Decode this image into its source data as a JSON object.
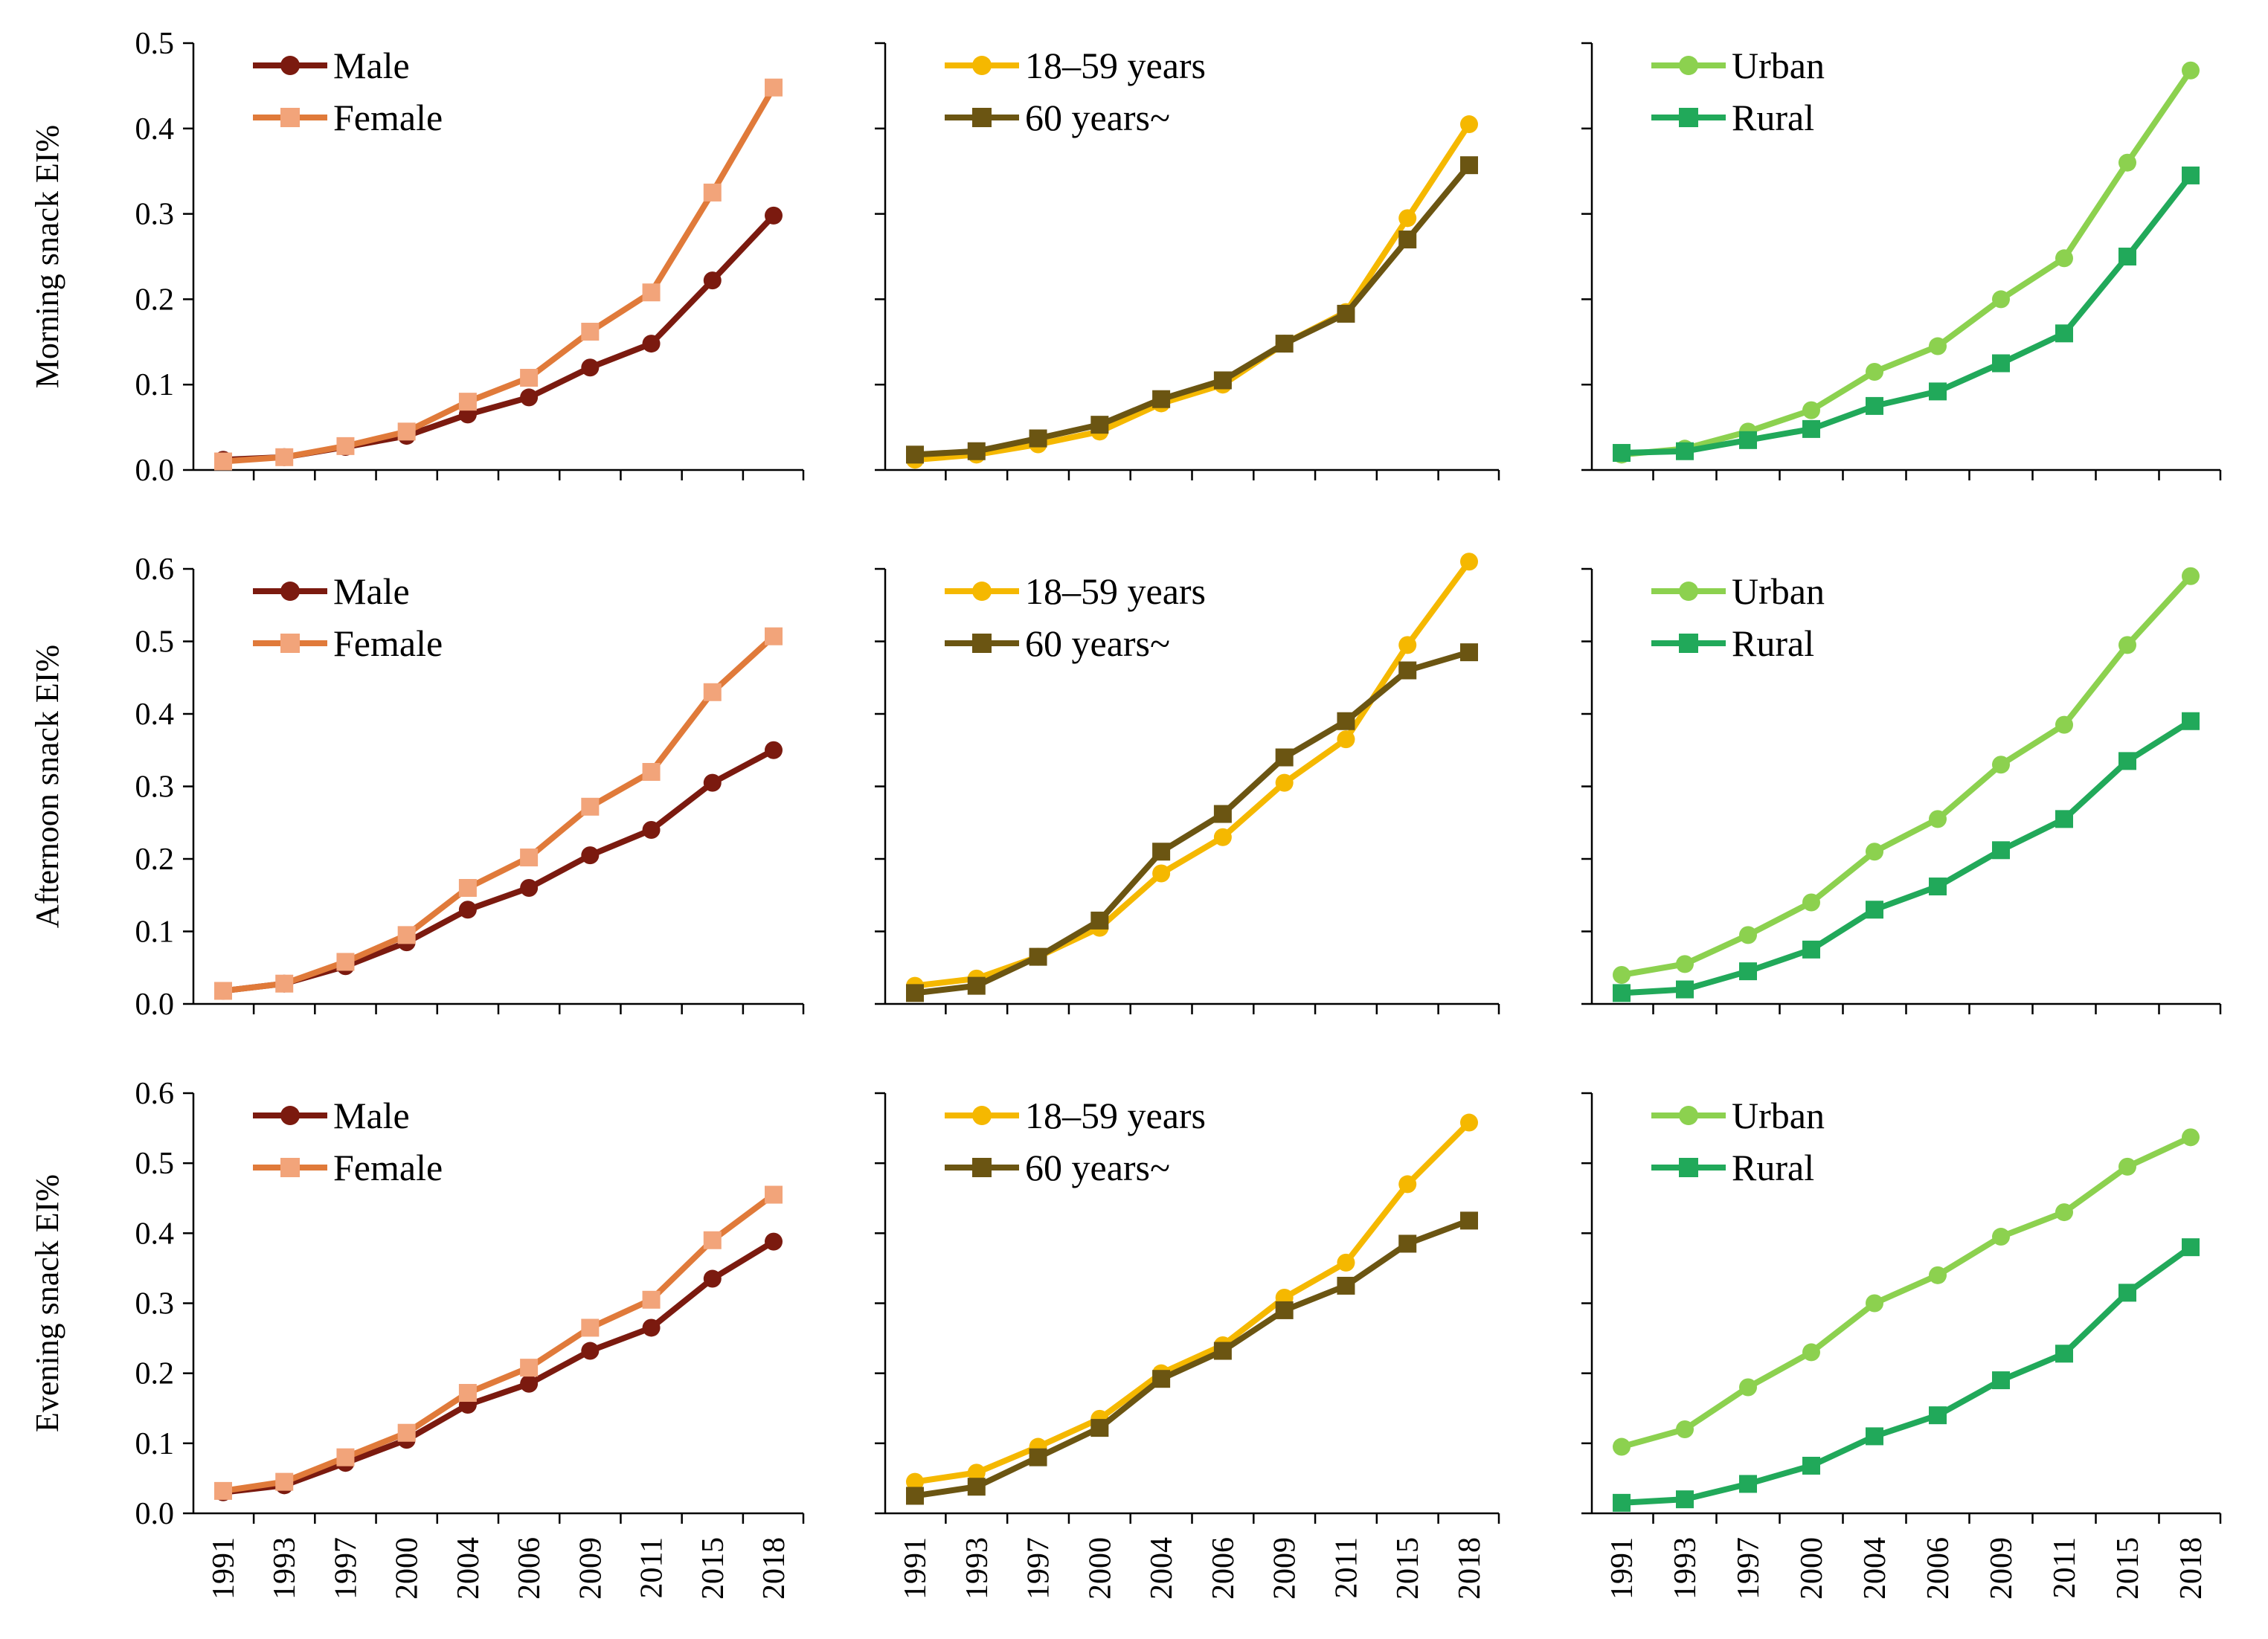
{
  "chart_data": {
    "type": "line",
    "layout": "3x3 grid of panels",
    "x": [
      "1991",
      "1993",
      "1997",
      "2000",
      "2004",
      "2006",
      "2009",
      "2011",
      "2015",
      "2018"
    ],
    "y_tick_labels_morning": [
      "0.0",
      "0.1",
      "0.2",
      "0.3",
      "0.4",
      "0.5"
    ],
    "y_tick_labels_other": [
      "0.0",
      "0.1",
      "0.2",
      "0.3",
      "0.4",
      "0.5",
      "0.6"
    ],
    "rows": [
      {
        "ylabel": "Morning snack EI%",
        "ylim": [
          0,
          0.5
        ]
      },
      {
        "ylabel": "Afternoon snack EI%",
        "ylim": [
          0,
          0.6
        ]
      },
      {
        "ylabel": "Evening snack EI%",
        "ylim": [
          0,
          0.6
        ]
      }
    ],
    "columns": [
      {
        "group": "sex",
        "legend_position": "top-left"
      },
      {
        "group": "age",
        "legend_position": "top-left"
      },
      {
        "group": "residence",
        "legend_position": "top-left"
      }
    ],
    "colors": {
      "Male": "#7b1a0f",
      "Female_line": "#e07a3a",
      "Female_marker": "#f2a47a",
      "Age_young": "#f5b800",
      "Age_old": "#6b5512",
      "Urban": "#8cd14f",
      "Rural": "#21a95a"
    },
    "panels": [
      {
        "row": 0,
        "col": 0,
        "series": [
          {
            "name": "Male",
            "marker": "circle",
            "values": [
              0.012,
              0.015,
              0.027,
              0.04,
              0.065,
              0.085,
              0.12,
              0.148,
              0.222,
              0.298
            ]
          },
          {
            "name": "Female",
            "marker": "square",
            "values": [
              0.01,
              0.015,
              0.028,
              0.045,
              0.08,
              0.108,
              0.162,
              0.208,
              0.325,
              0.448
            ]
          }
        ]
      },
      {
        "row": 0,
        "col": 1,
        "series": [
          {
            "name": "18–59 years",
            "marker": "circle",
            "values": [
              0.012,
              0.018,
              0.03,
              0.045,
              0.078,
              0.1,
              0.148,
              0.185,
              0.295,
              0.405
            ]
          },
          {
            "name": "60 years~",
            "marker": "square",
            "values": [
              0.018,
              0.022,
              0.037,
              0.053,
              0.083,
              0.105,
              0.148,
              0.183,
              0.27,
              0.357
            ]
          }
        ]
      },
      {
        "row": 0,
        "col": 2,
        "series": [
          {
            "name": "Urban",
            "marker": "circle",
            "values": [
              0.018,
              0.025,
              0.045,
              0.07,
              0.115,
              0.145,
              0.2,
              0.248,
              0.36,
              0.468
            ]
          },
          {
            "name": "Rural",
            "marker": "square",
            "values": [
              0.02,
              0.022,
              0.035,
              0.048,
              0.075,
              0.092,
              0.125,
              0.16,
              0.25,
              0.345
            ]
          }
        ]
      },
      {
        "row": 1,
        "col": 0,
        "series": [
          {
            "name": "Male",
            "marker": "circle",
            "values": [
              0.018,
              0.028,
              0.052,
              0.085,
              0.13,
              0.16,
              0.205,
              0.24,
              0.305,
              0.35
            ]
          },
          {
            "name": "Female",
            "marker": "square",
            "values": [
              0.018,
              0.028,
              0.058,
              0.095,
              0.16,
              0.202,
              0.272,
              0.32,
              0.43,
              0.507
            ]
          }
        ]
      },
      {
        "row": 1,
        "col": 1,
        "series": [
          {
            "name": "18–59 years",
            "marker": "circle",
            "values": [
              0.025,
              0.035,
              0.065,
              0.105,
              0.18,
              0.23,
              0.305,
              0.365,
              0.495,
              0.61
            ]
          },
          {
            "name": "60 years~",
            "marker": "square",
            "values": [
              0.015,
              0.025,
              0.065,
              0.115,
              0.21,
              0.262,
              0.34,
              0.39,
              0.46,
              0.485
            ]
          }
        ]
      },
      {
        "row": 1,
        "col": 2,
        "series": [
          {
            "name": "Urban",
            "marker": "circle",
            "values": [
              0.04,
              0.055,
              0.095,
              0.14,
              0.21,
              0.255,
              0.33,
              0.385,
              0.495,
              0.59
            ]
          },
          {
            "name": "Rural",
            "marker": "square",
            "values": [
              0.015,
              0.02,
              0.045,
              0.075,
              0.13,
              0.162,
              0.212,
              0.255,
              0.335,
              0.39
            ]
          }
        ]
      },
      {
        "row": 2,
        "col": 0,
        "series": [
          {
            "name": "Male",
            "marker": "circle",
            "values": [
              0.03,
              0.04,
              0.072,
              0.105,
              0.155,
              0.185,
              0.232,
              0.265,
              0.335,
              0.388
            ]
          },
          {
            "name": "Female",
            "marker": "square",
            "values": [
              0.032,
              0.045,
              0.08,
              0.115,
              0.172,
              0.208,
              0.265,
              0.305,
              0.39,
              0.455
            ]
          }
        ]
      },
      {
        "row": 2,
        "col": 1,
        "series": [
          {
            "name": "18–59 years",
            "marker": "circle",
            "values": [
              0.045,
              0.058,
              0.095,
              0.135,
              0.2,
              0.24,
              0.308,
              0.358,
              0.47,
              0.558
            ]
          },
          {
            "name": "60 years~",
            "marker": "square",
            "values": [
              0.025,
              0.038,
              0.08,
              0.122,
              0.192,
              0.232,
              0.29,
              0.325,
              0.385,
              0.418
            ]
          }
        ]
      },
      {
        "row": 2,
        "col": 2,
        "series": [
          {
            "name": "Urban",
            "marker": "circle",
            "values": [
              0.095,
              0.12,
              0.18,
              0.23,
              0.3,
              0.34,
              0.395,
              0.43,
              0.495,
              0.537
            ]
          },
          {
            "name": "Rural",
            "marker": "square",
            "values": [
              0.015,
              0.02,
              0.042,
              0.068,
              0.11,
              0.14,
              0.19,
              0.228,
              0.315,
              0.38
            ]
          }
        ]
      }
    ]
  }
}
